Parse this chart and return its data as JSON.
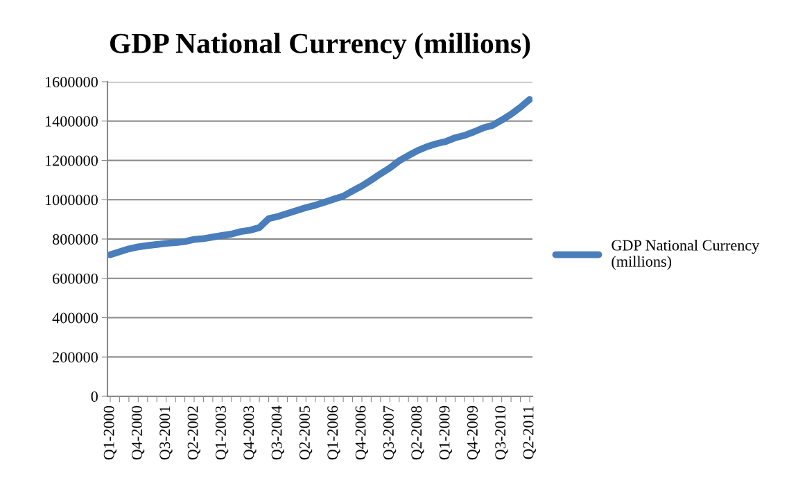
{
  "chart_data": {
    "type": "line",
    "title": "GDP National Currency (millions)",
    "categories": [
      "Q1-2000",
      null,
      null,
      "Q4-2000",
      null,
      null,
      "Q3-2001",
      null,
      null,
      "Q2-2002",
      null,
      null,
      "Q1-2003",
      null,
      null,
      "Q4-2003",
      null,
      null,
      "Q3-2004",
      null,
      null,
      "Q2-2005",
      null,
      null,
      "Q1-2006",
      null,
      null,
      "Q4-2006",
      null,
      null,
      "Q3-2007",
      null,
      null,
      "Q2-2008",
      null,
      null,
      "Q1-2009",
      null,
      null,
      "Q4-2009",
      null,
      null,
      "Q3-2010",
      null,
      null,
      "Q2-2011"
    ],
    "series": [
      {
        "name": "GDP National Currency (millions)",
        "color": "#4a7ebb",
        "values": [
          720000,
          735000,
          750000,
          760000,
          767000,
          772000,
          778000,
          782000,
          787000,
          798000,
          802000,
          810000,
          818000,
          825000,
          838000,
          845000,
          858000,
          904000,
          915000,
          930000,
          945000,
          960000,
          972000,
          987000,
          1003000,
          1018000,
          1045000,
          1070000,
          1100000,
          1132000,
          1162000,
          1198000,
          1225000,
          1250000,
          1270000,
          1285000,
          1296000,
          1315000,
          1327000,
          1345000,
          1365000,
          1378000,
          1405000,
          1435000,
          1470000,
          1510000
        ]
      }
    ],
    "ylim": [
      0,
      1600000
    ],
    "yticks": [
      0,
      200000,
      400000,
      600000,
      800000,
      1000000,
      1200000,
      1400000,
      1600000
    ],
    "grid": "y",
    "legend": "right",
    "marker": "none",
    "line_style": "solid"
  }
}
